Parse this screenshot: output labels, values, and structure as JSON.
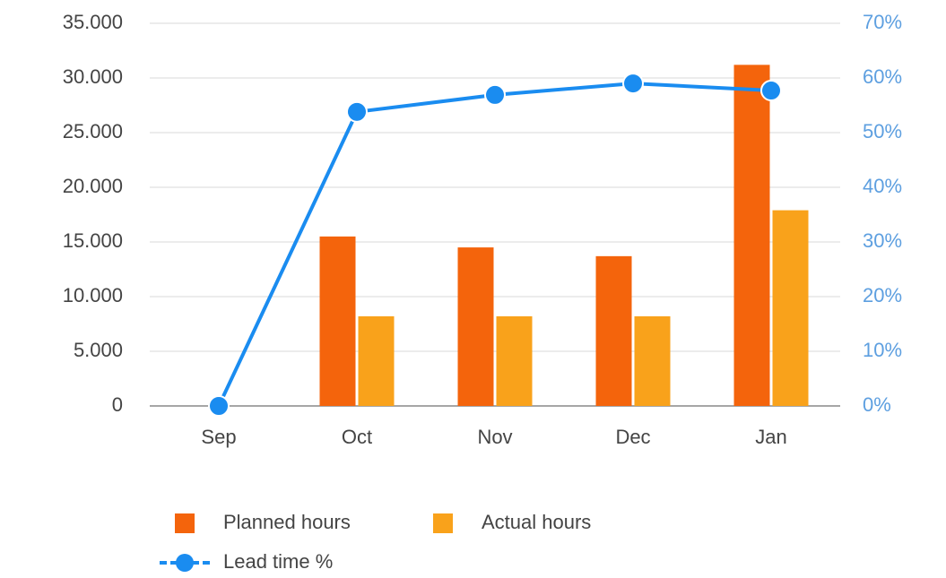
{
  "chart_data": {
    "type": "bar-line",
    "categories": [
      "Sep",
      "Oct",
      "Nov",
      "Dec",
      "Jan"
    ],
    "series": [
      {
        "name": "Planned hours",
        "type": "bar",
        "color": "#f4640c",
        "values": [
          0,
          15500,
          14500,
          13700,
          31200
        ]
      },
      {
        "name": "Actual hours",
        "type": "bar",
        "color": "#f9a21b",
        "values": [
          0,
          8200,
          8200,
          8200,
          17900
        ]
      },
      {
        "name": "Lead time %",
        "type": "line",
        "axis": "y2",
        "color": "#1a8cf0",
        "values": [
          0,
          53.8,
          56.9,
          59,
          57.7
        ]
      }
    ],
    "ylim": [
      0,
      35000
    ],
    "yticks": [
      {
        "value": 0,
        "label": "0"
      },
      {
        "value": 5000,
        "label": "5.000"
      },
      {
        "value": 10000,
        "label": "10.000"
      },
      {
        "value": 15000,
        "label": "15.000"
      },
      {
        "value": 20000,
        "label": "20.000"
      },
      {
        "value": 25000,
        "label": "25.000"
      },
      {
        "value": 30000,
        "label": "30.000"
      },
      {
        "value": 35000,
        "label": "35.000"
      }
    ],
    "y2lim": [
      0,
      70
    ],
    "y2ticks": [
      {
        "value": 0,
        "label": "0%"
      },
      {
        "value": 10,
        "label": "10%"
      },
      {
        "value": 20,
        "label": "20%"
      },
      {
        "value": 30,
        "label": "30%"
      },
      {
        "value": 40,
        "label": "40%"
      },
      {
        "value": 50,
        "label": "50%"
      },
      {
        "value": 60,
        "label": "60%"
      },
      {
        "value": 70,
        "label": "70%"
      }
    ],
    "grid": true,
    "legend": "bottom"
  }
}
